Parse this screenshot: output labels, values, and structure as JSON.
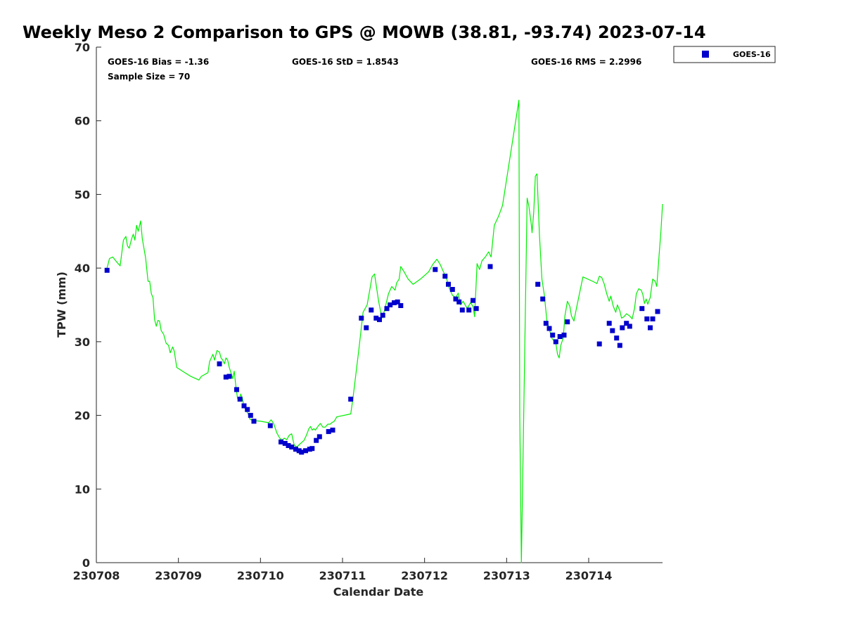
{
  "chart_data": {
    "type": "scatter",
    "title": "Weekly Meso 2 Comparison to GPS @ MOWB (38.81, -93.74) 2023-07-14",
    "xlabel": "Calendar Date",
    "ylabel": "TPW (mm)",
    "xlim": [
      0,
      6.9
    ],
    "ylim": [
      0,
      70
    ],
    "x_tick_values": [
      0,
      1,
      2,
      3,
      4,
      5,
      6
    ],
    "x_tick_labels": [
      "230708",
      "230709",
      "230710",
      "230711",
      "230712",
      "230713",
      "230714"
    ],
    "y_ticks": [
      0,
      10,
      20,
      30,
      40,
      50,
      60,
      70
    ],
    "grid": false,
    "legend_position": "top-right, outside plot",
    "legend": [
      {
        "label": "GOES-16",
        "marker": "square",
        "color": "#0000cc"
      }
    ],
    "stats": {
      "bias": "GOES-16 Bias = -1.36",
      "std": "GOES-16 StD = 1.8543",
      "rms": "GOES-16 RMS = 2.2996",
      "sample": "Sample Size = 70"
    },
    "series": [
      {
        "name": "GOES-16",
        "kind": "markers",
        "color": "#0000cc",
        "points": [
          [
            0.13,
            39.7
          ],
          [
            1.5,
            27.0
          ],
          [
            1.58,
            25.2
          ],
          [
            1.62,
            25.3
          ],
          [
            1.71,
            23.5
          ],
          [
            1.75,
            22.2
          ],
          [
            1.8,
            21.3
          ],
          [
            1.84,
            20.8
          ],
          [
            1.88,
            20.0
          ],
          [
            1.92,
            19.2
          ],
          [
            2.12,
            18.6
          ],
          [
            2.25,
            16.4
          ],
          [
            2.3,
            16.2
          ],
          [
            2.34,
            15.9
          ],
          [
            2.38,
            15.7
          ],
          [
            2.43,
            15.4
          ],
          [
            2.47,
            15.2
          ],
          [
            2.5,
            15.0
          ],
          [
            2.55,
            15.2
          ],
          [
            2.6,
            15.4
          ],
          [
            2.63,
            15.5
          ],
          [
            2.68,
            16.6
          ],
          [
            2.72,
            17.1
          ],
          [
            2.83,
            17.8
          ],
          [
            2.88,
            18.0
          ],
          [
            3.1,
            22.2
          ],
          [
            3.23,
            33.2
          ],
          [
            3.29,
            31.9
          ],
          [
            3.35,
            34.3
          ],
          [
            3.41,
            33.2
          ],
          [
            3.45,
            33.0
          ],
          [
            3.49,
            33.6
          ],
          [
            3.54,
            34.5
          ],
          [
            3.58,
            35.0
          ],
          [
            3.63,
            35.3
          ],
          [
            3.67,
            35.4
          ],
          [
            3.71,
            34.9
          ],
          [
            4.13,
            39.8
          ],
          [
            4.25,
            38.9
          ],
          [
            4.29,
            37.8
          ],
          [
            4.34,
            37.1
          ],
          [
            4.38,
            35.8
          ],
          [
            4.42,
            35.4
          ],
          [
            4.46,
            34.3
          ],
          [
            4.54,
            34.3
          ],
          [
            4.59,
            35.6
          ],
          [
            4.63,
            34.5
          ],
          [
            4.8,
            40.2
          ],
          [
            5.38,
            37.8
          ],
          [
            5.44,
            35.8
          ],
          [
            5.48,
            32.5
          ],
          [
            5.52,
            31.8
          ],
          [
            5.56,
            30.9
          ],
          [
            5.6,
            30.0
          ],
          [
            5.65,
            30.7
          ],
          [
            5.7,
            30.9
          ],
          [
            5.74,
            32.7
          ],
          [
            6.13,
            29.7
          ],
          [
            6.25,
            32.5
          ],
          [
            6.29,
            31.5
          ],
          [
            6.34,
            30.5
          ],
          [
            6.38,
            29.5
          ],
          [
            6.41,
            31.9
          ],
          [
            6.46,
            32.5
          ],
          [
            6.5,
            32.1
          ],
          [
            6.65,
            34.5
          ],
          [
            6.71,
            33.1
          ],
          [
            6.75,
            31.9
          ],
          [
            6.78,
            33.1
          ],
          [
            6.84,
            34.1
          ]
        ]
      },
      {
        "name": "",
        "kind": "line",
        "color": "#00ee00",
        "points": [
          [
            0.13,
            40.0
          ],
          [
            0.16,
            41.3
          ],
          [
            0.2,
            41.5
          ],
          [
            0.25,
            40.8
          ],
          [
            0.29,
            40.3
          ],
          [
            0.33,
            43.8
          ],
          [
            0.36,
            44.3
          ],
          [
            0.38,
            43.0
          ],
          [
            0.4,
            42.7
          ],
          [
            0.43,
            44.0
          ],
          [
            0.45,
            44.6
          ],
          [
            0.47,
            43.8
          ],
          [
            0.49,
            45.8
          ],
          [
            0.51,
            45.0
          ],
          [
            0.54,
            46.4
          ],
          [
            0.56,
            44.0
          ],
          [
            0.6,
            41.4
          ],
          [
            0.63,
            38.2
          ],
          [
            0.65,
            38.2
          ],
          [
            0.67,
            36.5
          ],
          [
            0.69,
            36.0
          ],
          [
            0.71,
            33.0
          ],
          [
            0.73,
            32.1
          ],
          [
            0.75,
            32.9
          ],
          [
            0.77,
            32.8
          ],
          [
            0.79,
            31.5
          ],
          [
            0.82,
            31.0
          ],
          [
            0.85,
            29.8
          ],
          [
            0.88,
            29.5
          ],
          [
            0.9,
            28.5
          ],
          [
            0.93,
            29.3
          ],
          [
            0.95,
            28.7
          ],
          [
            0.98,
            26.5
          ],
          [
            1.05,
            26.0
          ],
          [
            1.15,
            25.3
          ],
          [
            1.25,
            24.8
          ],
          [
            1.28,
            25.3
          ],
          [
            1.36,
            25.8
          ],
          [
            1.38,
            27.3
          ],
          [
            1.42,
            28.3
          ],
          [
            1.44,
            27.5
          ],
          [
            1.47,
            28.8
          ],
          [
            1.5,
            28.6
          ],
          [
            1.52,
            27.8
          ],
          [
            1.54,
            27.5
          ],
          [
            1.56,
            27.0
          ],
          [
            1.58,
            27.8
          ],
          [
            1.6,
            27.5
          ],
          [
            1.62,
            26.5
          ],
          [
            1.64,
            25.8
          ],
          [
            1.66,
            25.0
          ],
          [
            1.68,
            26.0
          ],
          [
            1.7,
            24.0
          ],
          [
            1.72,
            22.3
          ],
          [
            1.74,
            22.0
          ],
          [
            1.76,
            22.9
          ],
          [
            1.78,
            22.3
          ],
          [
            1.8,
            21.2
          ],
          [
            1.82,
            20.8
          ],
          [
            1.85,
            20.2
          ],
          [
            1.87,
            19.5
          ],
          [
            1.9,
            19.3
          ],
          [
            2.0,
            19.2
          ],
          [
            2.1,
            19.0
          ],
          [
            2.13,
            19.4
          ],
          [
            2.16,
            18.9
          ],
          [
            2.2,
            17.6
          ],
          [
            2.23,
            17.0
          ],
          [
            2.26,
            16.6
          ],
          [
            2.29,
            16.9
          ],
          [
            2.32,
            16.7
          ],
          [
            2.35,
            17.3
          ],
          [
            2.38,
            17.5
          ],
          [
            2.41,
            16.0
          ],
          [
            2.44,
            15.7
          ],
          [
            2.47,
            16.0
          ],
          [
            2.5,
            16.3
          ],
          [
            2.53,
            16.6
          ],
          [
            2.56,
            17.3
          ],
          [
            2.59,
            18.2
          ],
          [
            2.61,
            18.5
          ],
          [
            2.63,
            18.0
          ],
          [
            2.65,
            18.2
          ],
          [
            2.67,
            18.0
          ],
          [
            2.7,
            18.5
          ],
          [
            2.73,
            18.9
          ],
          [
            2.76,
            18.4
          ],
          [
            2.79,
            18.4
          ],
          [
            2.82,
            18.8
          ],
          [
            2.85,
            18.8
          ],
          [
            2.87,
            19.0
          ],
          [
            2.9,
            19.2
          ],
          [
            2.93,
            19.8
          ],
          [
            3.1,
            20.2
          ],
          [
            3.13,
            22.6
          ],
          [
            3.2,
            29.0
          ],
          [
            3.25,
            34.0
          ],
          [
            3.3,
            35.0
          ],
          [
            3.36,
            38.8
          ],
          [
            3.39,
            39.2
          ],
          [
            3.44,
            35.5
          ],
          [
            3.48,
            33.2
          ],
          [
            3.51,
            34.2
          ],
          [
            3.56,
            36.5
          ],
          [
            3.6,
            37.5
          ],
          [
            3.64,
            37.0
          ],
          [
            3.66,
            38.0
          ],
          [
            3.69,
            38.5
          ],
          [
            3.71,
            40.2
          ],
          [
            3.75,
            39.5
          ],
          [
            3.8,
            38.5
          ],
          [
            3.86,
            37.8
          ],
          [
            3.95,
            38.5
          ],
          [
            4.05,
            39.5
          ],
          [
            4.1,
            40.5
          ],
          [
            4.15,
            41.2
          ],
          [
            4.19,
            40.5
          ],
          [
            4.23,
            39.5
          ],
          [
            4.27,
            38.5
          ],
          [
            4.3,
            37.3
          ],
          [
            4.34,
            36.3
          ],
          [
            4.38,
            36.0
          ],
          [
            4.41,
            36.6
          ],
          [
            4.44,
            35.0
          ],
          [
            4.47,
            35.5
          ],
          [
            4.52,
            34.5
          ],
          [
            4.56,
            35.3
          ],
          [
            4.59,
            34.8
          ],
          [
            4.61,
            33.4
          ],
          [
            4.64,
            40.6
          ],
          [
            4.67,
            39.8
          ],
          [
            4.7,
            41.0
          ],
          [
            4.74,
            41.5
          ],
          [
            4.78,
            42.2
          ],
          [
            4.81,
            41.5
          ],
          [
            4.85,
            45.8
          ],
          [
            4.9,
            47.0
          ],
          [
            4.95,
            48.5
          ],
          [
            5.15,
            62.8
          ],
          [
            5.16,
            20.0
          ],
          [
            5.18,
            0.0
          ],
          [
            5.25,
            49.5
          ],
          [
            5.27,
            48.5
          ],
          [
            5.3,
            46.0
          ],
          [
            5.31,
            44.8
          ],
          [
            5.33,
            47.5
          ],
          [
            5.35,
            52.5
          ],
          [
            5.37,
            52.8
          ],
          [
            5.4,
            44.5
          ],
          [
            5.43,
            38.5
          ],
          [
            5.46,
            36.3
          ],
          [
            5.49,
            32.9
          ],
          [
            5.52,
            31.7
          ],
          [
            5.55,
            30.5
          ],
          [
            5.57,
            30.2
          ],
          [
            5.6,
            29.8
          ],
          [
            5.62,
            28.3
          ],
          [
            5.64,
            27.8
          ],
          [
            5.66,
            29.5
          ],
          [
            5.69,
            30.5
          ],
          [
            5.71,
            33.5
          ],
          [
            5.74,
            35.5
          ],
          [
            5.77,
            34.8
          ],
          [
            5.79,
            33.5
          ],
          [
            5.82,
            32.8
          ],
          [
            5.85,
            34.5
          ],
          [
            5.93,
            38.8
          ],
          [
            6.05,
            38.2
          ],
          [
            6.1,
            37.9
          ],
          [
            6.13,
            38.9
          ],
          [
            6.16,
            38.7
          ],
          [
            6.19,
            37.8
          ],
          [
            6.22,
            36.5
          ],
          [
            6.25,
            35.5
          ],
          [
            6.27,
            36.2
          ],
          [
            6.3,
            34.8
          ],
          [
            6.33,
            34.0
          ],
          [
            6.35,
            35.0
          ],
          [
            6.38,
            34.2
          ],
          [
            6.4,
            33.2
          ],
          [
            6.43,
            33.4
          ],
          [
            6.46,
            33.8
          ],
          [
            6.5,
            33.5
          ],
          [
            6.53,
            33.1
          ],
          [
            6.56,
            34.6
          ],
          [
            6.58,
            36.5
          ],
          [
            6.61,
            37.2
          ],
          [
            6.64,
            37.0
          ],
          [
            6.66,
            36.4
          ],
          [
            6.68,
            35.2
          ],
          [
            6.7,
            35.8
          ],
          [
            6.72,
            35.1
          ],
          [
            6.75,
            36.0
          ],
          [
            6.78,
            38.5
          ],
          [
            6.81,
            38.2
          ],
          [
            6.83,
            37.5
          ],
          [
            6.86,
            42.0
          ],
          [
            6.88,
            45.0
          ],
          [
            6.9,
            48.7
          ]
        ]
      }
    ]
  }
}
